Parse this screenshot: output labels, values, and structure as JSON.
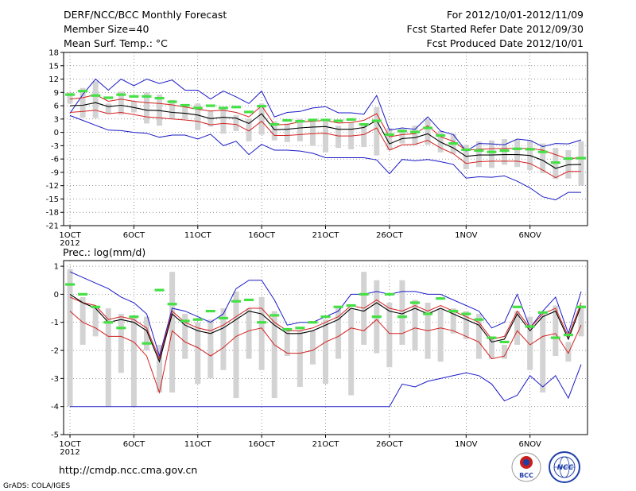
{
  "header": {
    "title": "DERF/NCC/BCC Monthly Forecast",
    "member_size": "Member Size=40",
    "variable": "Mean Surf. Temp.: °C",
    "for_range": "For 2012/10/01-2012/11/09",
    "fcst_started": "Fcst Started Refer Date 2012/09/30",
    "fcst_produced": "Fcst Produced Date 2012/10/01"
  },
  "footer": {
    "url": "http://cmdp.ncc.cma.gov.cn",
    "grads_credit": "GrADS: COLA/IGES",
    "logo_bcc": "BCC",
    "logo_ncc": "NCC"
  },
  "colors": {
    "box": "#d3d3d3",
    "obs": "#44e044",
    "mean": "#000000",
    "spread": "#d42020",
    "envelope": "#1a1ac8",
    "grid": "#555555"
  },
  "chart_data": [
    {
      "type": "line",
      "title": "Mean Surf. Temp.: °C",
      "xlabel": "",
      "ylabel": "",
      "x_ticks": [
        "1OCT",
        "6OCT",
        "11OCT",
        "16OCT",
        "21OCT",
        "26OCT",
        "1NOV",
        "6NOV"
      ],
      "x_tick_days": [
        1,
        6,
        11,
        16,
        21,
        26,
        32,
        37
      ],
      "x_year_label": "2012",
      "xlim": [
        0.5,
        41.5
      ],
      "ylim": [
        -21,
        18
      ],
      "yticks": [
        18,
        15,
        12,
        9,
        6,
        3,
        0,
        -3,
        -6,
        -9,
        -12,
        -15,
        -18,
        -21
      ],
      "grid": true,
      "series": [
        {
          "name": "max",
          "values": [
            4.3,
            8.5,
            12.0,
            9.5,
            12.0,
            10.5,
            12.0,
            11.0,
            11.8,
            9.5,
            9.5,
            7.5,
            9.3,
            8.0,
            6.5,
            9.3,
            3.5,
            4.5,
            4.7,
            5.5,
            5.8,
            4.4,
            4.4,
            4.1,
            8.3,
            0.5,
            1.0,
            0.7,
            3.5,
            0.3,
            -0.5,
            -4.2,
            -2.5,
            -2.6,
            -2.8,
            -1.5,
            -1.8,
            -3.2,
            -2.5,
            -2.6,
            -1.7
          ]
        },
        {
          "name": "spread_high",
          "values": [
            7.5,
            7.8,
            8.5,
            7.0,
            7.5,
            7.0,
            6.7,
            6.5,
            6.2,
            5.7,
            5.2,
            4.8,
            5.0,
            4.5,
            3.5,
            6.0,
            1.7,
            1.8,
            2.4,
            2.5,
            2.7,
            2.1,
            2.2,
            2.7,
            4.2,
            -1.0,
            -0.5,
            -0.3,
            1.5,
            -1.0,
            -2.0,
            -4.0,
            -3.8,
            -3.7,
            -3.6,
            -3.6,
            -3.6,
            -4.0,
            -5.0,
            -6.0,
            -5.6
          ]
        },
        {
          "name": "mean",
          "values": [
            6.0,
            6.1,
            6.7,
            5.8,
            6.1,
            5.6,
            5.0,
            4.9,
            4.5,
            4.3,
            3.9,
            3.1,
            3.4,
            3.2,
            2.0,
            4.2,
            0.6,
            0.7,
            1.0,
            1.2,
            1.3,
            0.7,
            0.7,
            1.1,
            2.7,
            -2.6,
            -1.4,
            -1.2,
            -0.3,
            -2.2,
            -3.5,
            -5.4,
            -5.1,
            -5.1,
            -5.0,
            -5.0,
            -5.2,
            -6.3,
            -8.1,
            -7.3,
            -7.2
          ]
        },
        {
          "name": "spread_low",
          "values": [
            4.5,
            4.7,
            5.0,
            4.2,
            4.5,
            4.0,
            3.5,
            3.3,
            3.0,
            2.8,
            2.5,
            1.7,
            2.0,
            1.8,
            0.3,
            2.5,
            -0.7,
            -0.7,
            -0.5,
            -0.3,
            -0.2,
            -0.8,
            -0.8,
            -0.5,
            1.0,
            -4.0,
            -2.8,
            -2.7,
            -1.8,
            -3.5,
            -4.8,
            -7.0,
            -6.6,
            -6.5,
            -6.5,
            -6.5,
            -7.0,
            -8.5,
            -10.2,
            -8.8,
            -8.8
          ]
        },
        {
          "name": "min",
          "values": [
            3.8,
            2.7,
            1.6,
            0.5,
            0.4,
            0.0,
            -0.2,
            -1.1,
            -0.6,
            -0.6,
            -1.5,
            -0.4,
            -3.0,
            -2.0,
            -5.0,
            -2.7,
            -4.0,
            -4.0,
            -4.2,
            -4.7,
            -5.7,
            -5.7,
            -5.7,
            -5.7,
            -6.2,
            -9.3,
            -6.1,
            -6.4,
            -6.1,
            -6.6,
            -7.2,
            -10.3,
            -10.0,
            -10.1,
            -9.8,
            -11.0,
            -12.5,
            -14.5,
            -15.2,
            -13.5,
            -13.5
          ]
        },
        {
          "name": "box_high",
          "values": [
            9.0,
            10.0,
            11.5,
            6.5,
            9.2,
            7.0,
            9.0,
            8.5,
            7.3,
            6.4,
            6.5,
            4.8,
            5.5,
            3.9,
            3.1,
            6.5,
            2.5,
            2.0,
            3.1,
            2.8,
            2.8,
            1.5,
            2.2,
            2.0,
            5.7,
            1.0,
            0.8,
            1.5,
            3.0,
            0.3,
            -0.3,
            -2.8,
            -2.0,
            -1.8,
            -1.5,
            -1.7,
            -1.7,
            -2.5,
            -3.5,
            -4.0,
            -2.0
          ]
        },
        {
          "name": "box_low",
          "values": [
            6.5,
            3.3,
            3.2,
            4.2,
            4.0,
            4.5,
            2.0,
            1.5,
            3.0,
            3.0,
            0.5,
            1.3,
            -0.3,
            0.3,
            -2.0,
            -0.5,
            -1.8,
            -2.2,
            -2.0,
            -3.0,
            -4.5,
            -3.5,
            -3.8,
            -3.3,
            -5.2,
            -4.0,
            -2.5,
            -2.8,
            -2.8,
            -4.5,
            -4.8,
            -8.3,
            -7.8,
            -8.0,
            -7.3,
            -7.8,
            -8.5,
            -9.2,
            -10.5,
            -10.4,
            -12.0
          ]
        },
        {
          "name": "observed",
          "values": [
            8.5,
            9.3,
            8.3,
            7.8,
            8.5,
            8.1,
            8.1,
            7.7,
            6.9,
            6.1,
            5.5,
            6.0,
            5.5,
            5.7,
            4.6,
            5.9,
            1.8,
            2.7,
            2.5,
            2.8,
            2.8,
            2.6,
            2.9,
            1.8,
            2.6,
            -0.5,
            0.3,
            0.1,
            1.0,
            -0.7,
            -2.5,
            -3.9,
            -4.1,
            -4.4,
            -4.1,
            -3.7,
            -3.8,
            -4.4,
            -6.8,
            -5.9,
            -5.8
          ]
        }
      ]
    },
    {
      "type": "line",
      "title": "Prec.: log(mm/d)",
      "xlabel": "",
      "ylabel": "",
      "x_ticks": [
        "1OCT",
        "6OCT",
        "11OCT",
        "16OCT",
        "21OCT",
        "26OCT",
        "1NOV",
        "6NOV"
      ],
      "x_tick_days": [
        1,
        6,
        11,
        16,
        21,
        26,
        32,
        37
      ],
      "x_year_label": "2012",
      "xlim": [
        0.5,
        41.5
      ],
      "ylim": [
        -5,
        1.2
      ],
      "yticks": [
        1,
        0,
        -1,
        -2,
        -3,
        -4,
        -5
      ],
      "grid": true,
      "series": [
        {
          "name": "max",
          "values": [
            0.8,
            0.6,
            0.4,
            0.2,
            -0.1,
            -0.3,
            -0.7,
            -2.2,
            -0.5,
            -0.6,
            -0.8,
            -1.0,
            -0.7,
            0.2,
            0.5,
            0.5,
            -0.2,
            -1.1,
            -1.0,
            -1.0,
            -0.8,
            -0.6,
            0.0,
            0.0,
            0.1,
            0.0,
            0.1,
            0.1,
            0.0,
            0.0,
            -0.2,
            -0.4,
            -0.6,
            -1.2,
            -1.0,
            0.0,
            -1.2,
            -0.6,
            -0.1,
            -1.4,
            0.1
          ]
        },
        {
          "name": "spread_high",
          "values": [
            -0.1,
            -0.3,
            -0.4,
            -0.9,
            -0.8,
            -0.9,
            -1.2,
            -2.3,
            -0.6,
            -1.0,
            -1.2,
            -1.3,
            -1.1,
            -0.8,
            -0.5,
            -0.5,
            -1.0,
            -1.3,
            -1.3,
            -1.2,
            -1.0,
            -0.8,
            -0.4,
            -0.5,
            -0.2,
            -0.5,
            -0.6,
            -0.4,
            -0.6,
            -0.4,
            -0.6,
            -0.8,
            -1.0,
            -1.6,
            -1.5,
            -0.6,
            -1.2,
            -0.7,
            -0.5,
            -1.5,
            -0.3
          ]
        },
        {
          "name": "mean",
          "values": [
            0.0,
            -0.3,
            -0.5,
            -1.0,
            -0.9,
            -1.0,
            -1.3,
            -2.4,
            -0.7,
            -1.1,
            -1.3,
            -1.4,
            -1.2,
            -0.9,
            -0.6,
            -0.7,
            -1.1,
            -1.4,
            -1.4,
            -1.3,
            -1.1,
            -0.9,
            -0.5,
            -0.6,
            -0.3,
            -0.6,
            -0.7,
            -0.5,
            -0.7,
            -0.5,
            -0.7,
            -0.9,
            -1.1,
            -1.7,
            -1.6,
            -0.7,
            -1.3,
            -0.8,
            -0.6,
            -1.6,
            -0.4
          ]
        },
        {
          "name": "spread_low",
          "values": [
            -0.6,
            -1.0,
            -1.2,
            -1.5,
            -1.5,
            -1.7,
            -2.2,
            -3.5,
            -1.3,
            -1.7,
            -1.9,
            -2.2,
            -1.9,
            -1.5,
            -1.3,
            -1.2,
            -1.8,
            -2.1,
            -2.1,
            -2.0,
            -1.7,
            -1.5,
            -1.2,
            -1.3,
            -0.9,
            -1.4,
            -1.4,
            -1.2,
            -1.3,
            -1.2,
            -1.3,
            -1.5,
            -1.7,
            -2.3,
            -2.2,
            -1.3,
            -1.8,
            -1.5,
            -1.4,
            -2.1,
            -1.1
          ]
        },
        {
          "name": "min",
          "values": [
            -4.0,
            -4.0,
            -4.0,
            -4.0,
            -4.0,
            -4.0,
            -4.0,
            -4.0,
            -4.0,
            -4.0,
            -4.0,
            -4.0,
            -4.0,
            -4.0,
            -4.0,
            -4.0,
            -4.0,
            -4.0,
            -4.0,
            -4.0,
            -4.0,
            -4.0,
            -4.0,
            -4.0,
            -4.0,
            -4.0,
            -3.2,
            -3.3,
            -3.1,
            -3.0,
            -2.9,
            -2.8,
            -2.9,
            -3.2,
            -3.8,
            -3.6,
            -2.9,
            -3.3,
            -2.9,
            -3.7,
            -2.5
          ]
        },
        {
          "name": "box_high",
          "values": [
            0.9,
            -0.1,
            -0.5,
            -0.5,
            -0.7,
            -0.8,
            -0.8,
            -1.8,
            0.8,
            -0.7,
            -1.0,
            -0.9,
            -0.5,
            0.1,
            -0.5,
            -0.1,
            -0.6,
            -1.2,
            -1.3,
            -1.3,
            -0.9,
            -0.5,
            -0.5,
            0.8,
            0.5,
            -0.3,
            0.5,
            -0.2,
            -0.3,
            -0.5,
            -0.5,
            -0.6,
            -0.7,
            -1.5,
            -1.8,
            -0.6,
            -0.8,
            -0.7,
            -0.4,
            -1.7,
            -0.4
          ]
        },
        {
          "name": "box_low",
          "values": [
            -4.0,
            -1.8,
            -1.5,
            -4.0,
            -2.8,
            -4.0,
            -2.0,
            -3.5,
            -3.5,
            -2.3,
            -3.2,
            -3.0,
            -2.7,
            -3.7,
            -2.3,
            -2.7,
            -3.7,
            -2.2,
            -3.3,
            -2.5,
            -3.2,
            -2.3,
            -3.6,
            -1.8,
            -2.1,
            -2.6,
            -1.8,
            -2.0,
            -2.3,
            -2.4,
            -1.4,
            -1.6,
            -2.3,
            -2.3,
            -2.3,
            -1.8,
            -2.7,
            -3.5,
            -2.2,
            -2.4,
            -1.5
          ]
        },
        {
          "name": "observed",
          "values": [
            0.35,
            0.0,
            -0.45,
            -1.0,
            -1.2,
            -0.8,
            -1.75,
            0.15,
            -0.35,
            -0.95,
            -0.9,
            -0.6,
            -0.85,
            -0.25,
            -0.2,
            -1.0,
            -0.75,
            -1.25,
            -1.2,
            -1.0,
            -0.8,
            -0.45,
            -0.4,
            0.0,
            -0.8,
            0.0,
            -0.8,
            -0.3,
            -0.7,
            -0.15,
            -0.6,
            -0.7,
            -0.9,
            -1.55,
            -1.7,
            -0.45,
            -1.15,
            -0.65,
            -1.55,
            -1.45,
            -0.45
          ]
        }
      ]
    }
  ]
}
